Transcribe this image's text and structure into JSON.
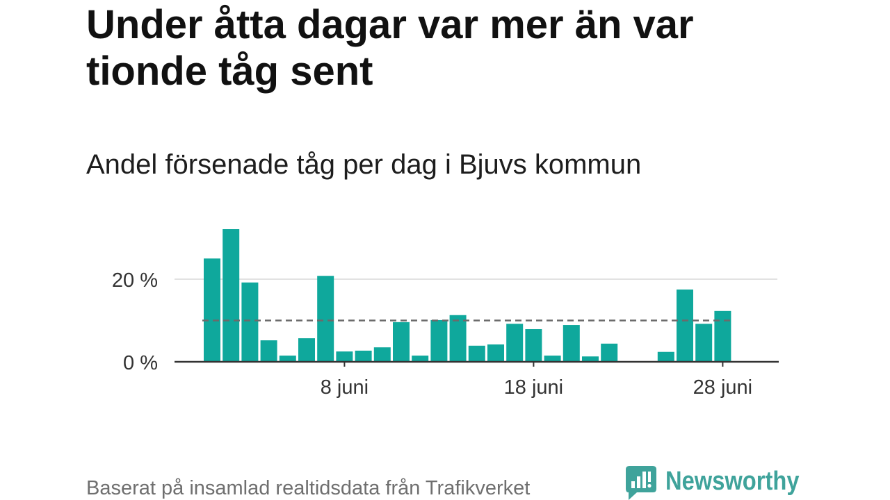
{
  "chart_data": {
    "type": "bar",
    "title": "Under åtta dagar var mer än var tionde tåg sent",
    "subtitle": "Andel försenade tåg per dag i Bjuvs kommun",
    "xlabel": "",
    "ylabel": "",
    "x": [
      1,
      2,
      3,
      4,
      5,
      6,
      7,
      8,
      9,
      10,
      11,
      12,
      13,
      14,
      15,
      16,
      17,
      18,
      19,
      20,
      21,
      22,
      23,
      24,
      25,
      26,
      27,
      28
    ],
    "values": [
      25.0,
      32.1,
      19.2,
      5.2,
      1.5,
      5.7,
      20.8,
      2.5,
      2.7,
      3.5,
      9.6,
      1.5,
      10.1,
      11.3,
      3.9,
      4.2,
      9.2,
      7.9,
      1.5,
      8.9,
      1.3,
      4.4,
      0,
      0,
      2.4,
      17.5,
      9.2,
      12.3
    ],
    "x_ticks": [
      8,
      18,
      28
    ],
    "x_tick_labels": [
      "8 juni",
      "18 juni",
      "28 juni"
    ],
    "y_ticks": [
      0,
      20
    ],
    "y_tick_labels": [
      "0 %",
      "20 %"
    ],
    "ylim": [
      0,
      33
    ],
    "grid": true,
    "reference_line": {
      "value": 10,
      "dashed": true
    }
  },
  "footer": {
    "source": "Baserat på insamlad realtidsdata från Trafikverket"
  },
  "logo": {
    "text": "Newsworthy",
    "icon": "newsworthy-chat-bars-icon"
  },
  "colors": {
    "bar": "#0fa89c",
    "reference_line": "#6b6b6b",
    "gridline": "#d9d9d9",
    "axis": "#333333",
    "brand": "#3fa39b"
  }
}
